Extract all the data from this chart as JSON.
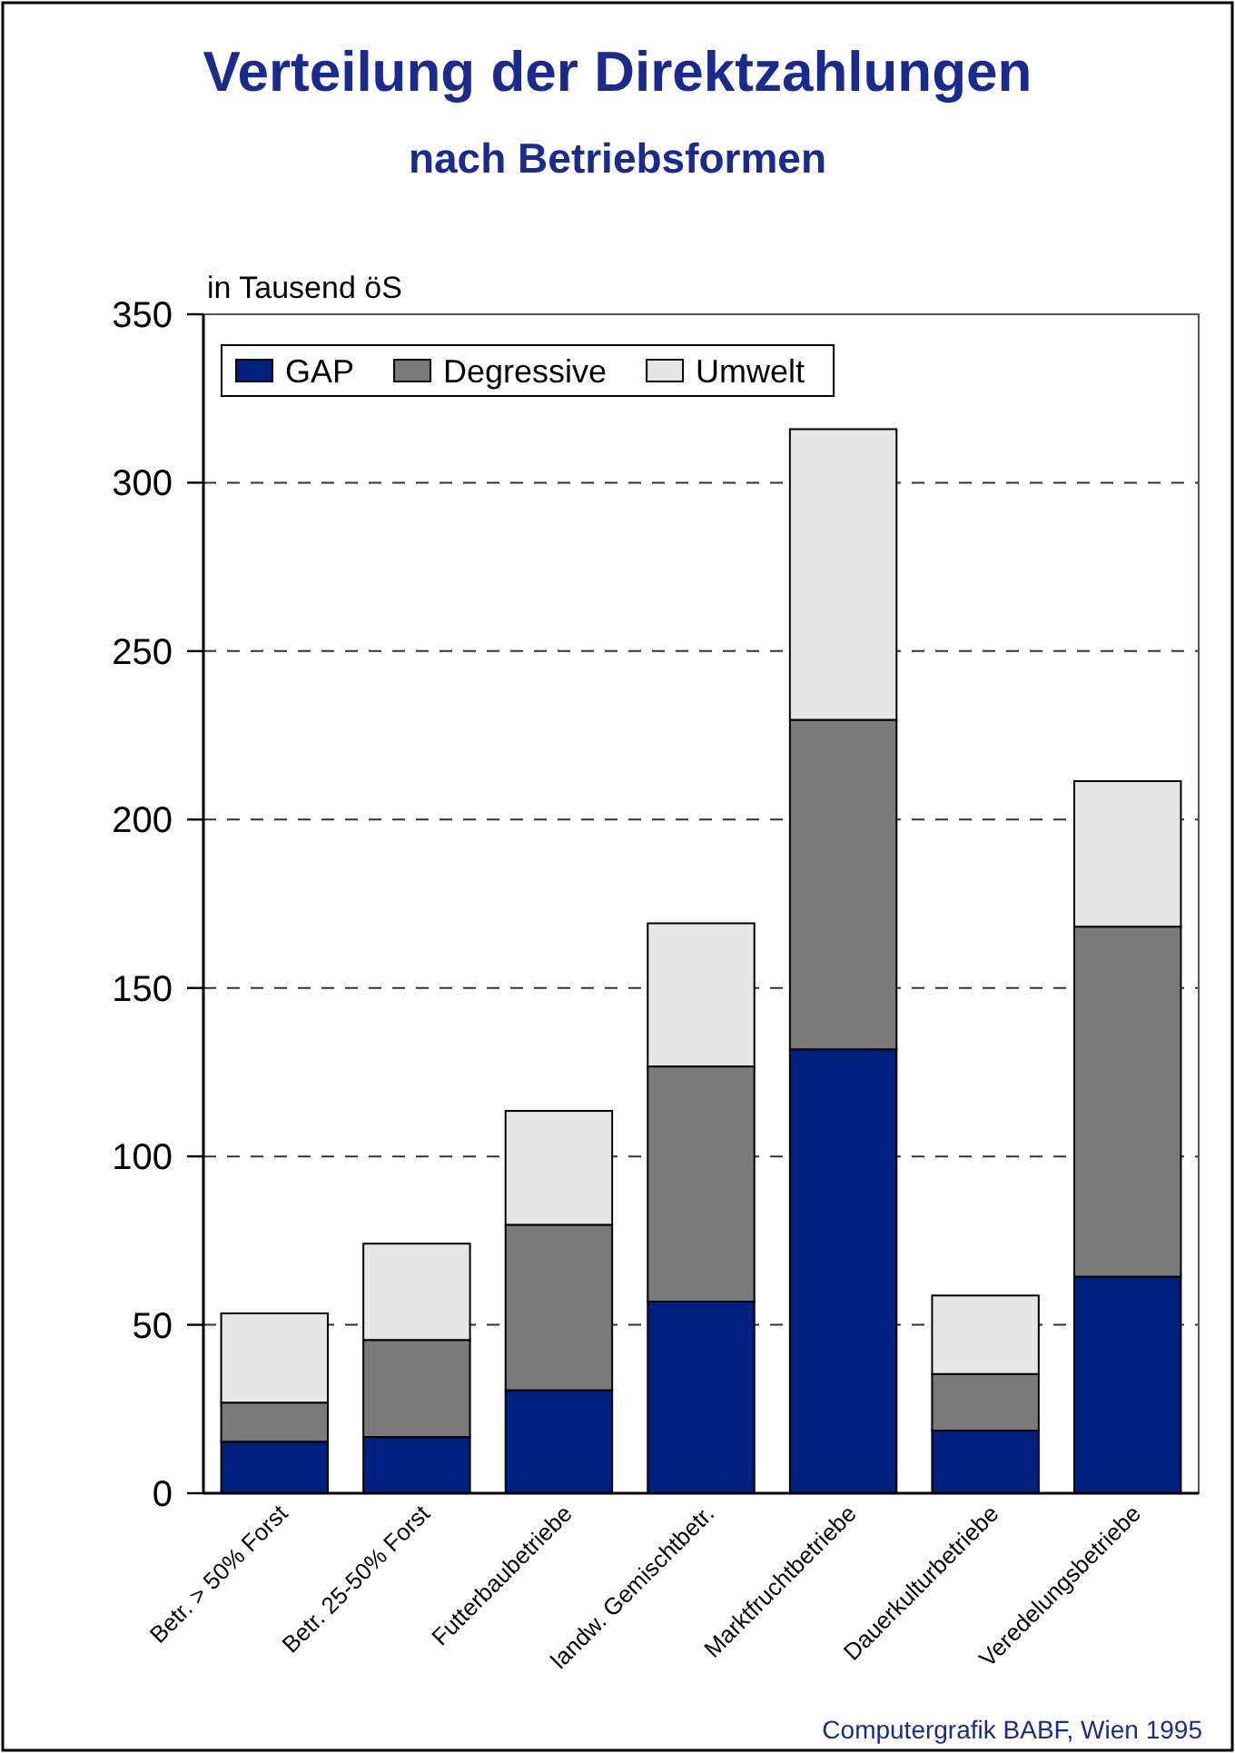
{
  "chart_data": {
    "type": "bar",
    "stacked": true,
    "title": "Verteilung der Direktzahlungen",
    "subtitle": "nach Betriebsformen",
    "ylabel": "in Tausend öS",
    "categories": [
      "Betr. > 50% Forst",
      "Betr. 25-50% Forst",
      "Futterbaubetriebe",
      "landw. Gemischtbetr.",
      "Marktfruchtbetriebe",
      "Dauerkulturbetriebe",
      "Veredelungsbetriebe"
    ],
    "series": [
      {
        "name": "GAP",
        "color": "#00207f",
        "values": [
          15.3,
          16.7,
          30.6,
          56.9,
          131.8,
          18.6,
          64.3
        ]
      },
      {
        "name": "Degressive",
        "color": "#7a7a7a",
        "values": [
          11.6,
          28.8,
          49.1,
          69.8,
          97.8,
          16.8,
          103.9
        ]
      },
      {
        "name": "Umwelt",
        "color": "#e6e6e6",
        "values": [
          26.5,
          28.6,
          33.8,
          42.5,
          86.3,
          23.3,
          43.2
        ]
      }
    ],
    "ylim": [
      0,
      350
    ],
    "yticks": [
      0,
      50,
      100,
      150,
      200,
      250,
      300,
      350
    ],
    "grid": "y",
    "legend": "top left",
    "annotations": [
      "Computergrafik BABF, Wien 1995"
    ]
  }
}
